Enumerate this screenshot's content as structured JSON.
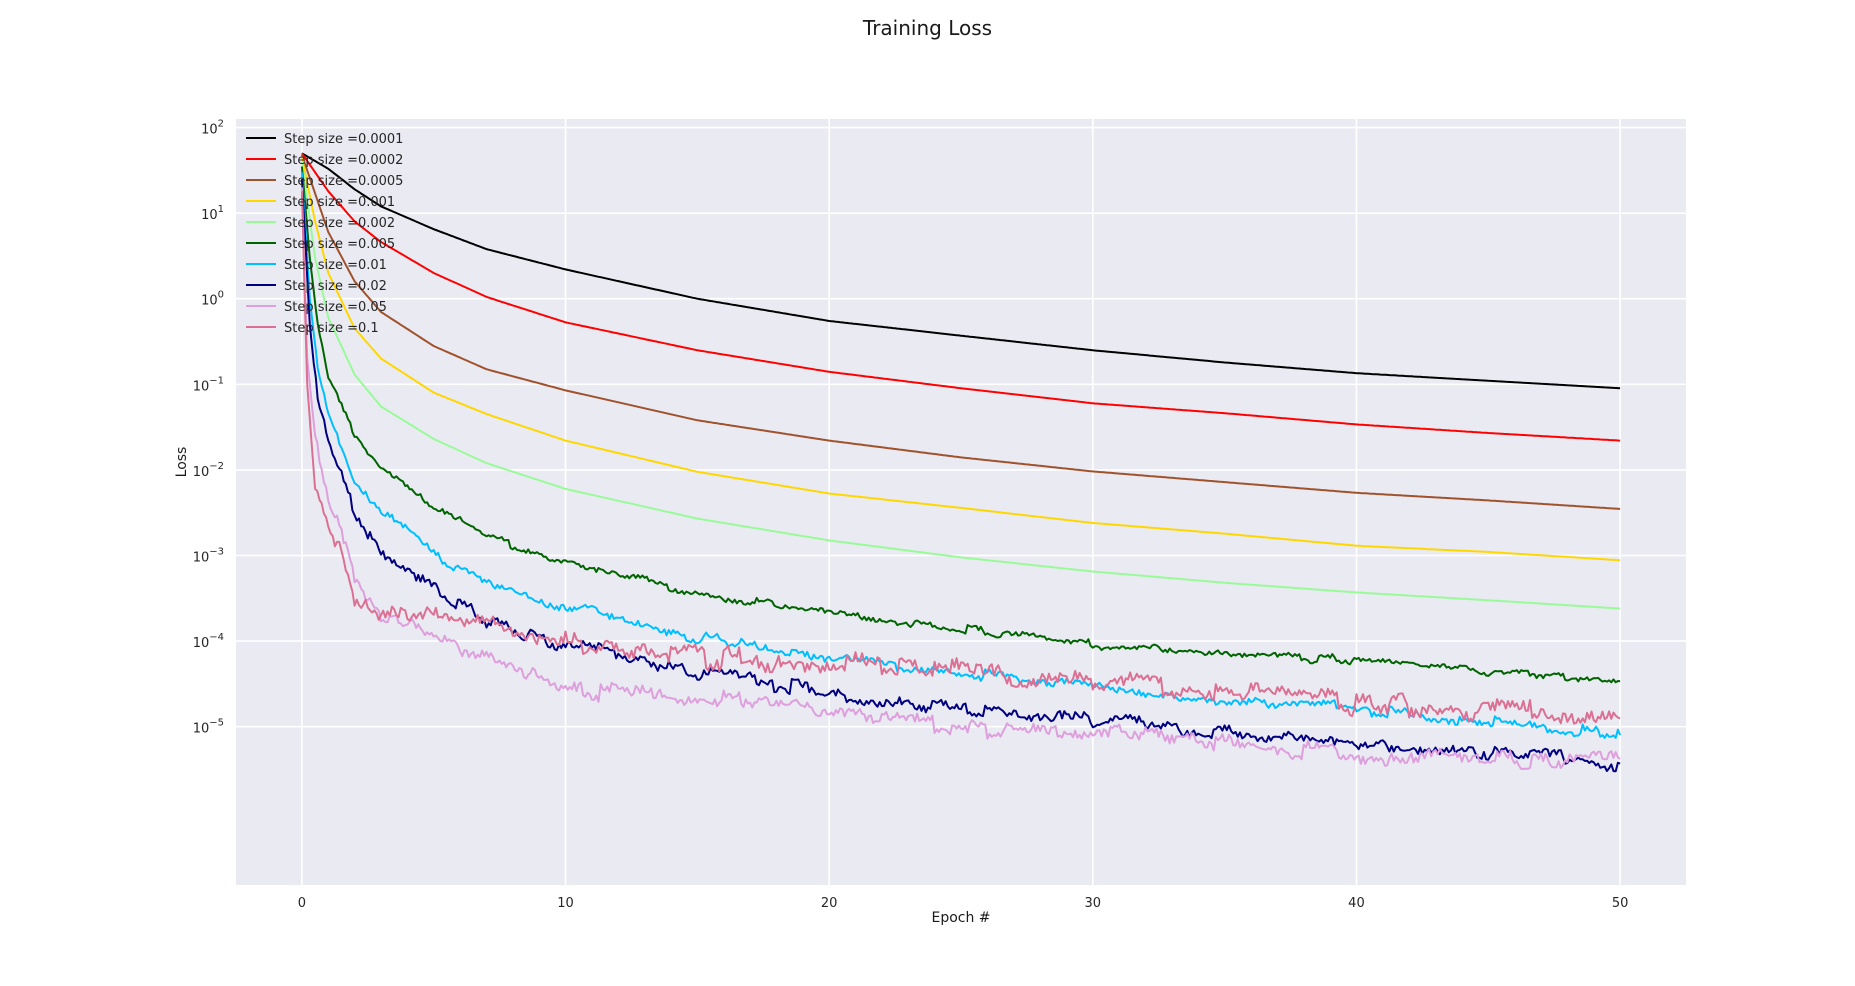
{
  "chart_data": {
    "type": "line",
    "title": "Training Loss",
    "xlabel": "Epoch #",
    "ylabel": "Loss",
    "xlim": [
      -2.5,
      52.5
    ],
    "yscale": "log",
    "ylim_exponent": [
      -6.85,
      2.1
    ],
    "x_ticks": [
      0,
      10,
      20,
      30,
      40,
      50
    ],
    "y_tick_exponents": [
      2,
      1,
      0,
      -1,
      -2,
      -3,
      -4,
      -5
    ],
    "grid": true,
    "legend_position": "upper-left",
    "series": [
      {
        "name": "Step size =0.0001",
        "color": "#000000",
        "points": [
          [
            0,
            50
          ],
          [
            1,
            33
          ],
          [
            2,
            19
          ],
          [
            3,
            12
          ],
          [
            5,
            6.5
          ],
          [
            7,
            3.8
          ],
          [
            10,
            2.2
          ],
          [
            15,
            1.0
          ],
          [
            20,
            0.55
          ],
          [
            25,
            0.37
          ],
          [
            30,
            0.25
          ],
          [
            35,
            0.18
          ],
          [
            40,
            0.135
          ],
          [
            45,
            0.11
          ],
          [
            50,
            0.09
          ]
        ]
      },
      {
        "name": "Step size =0.0002",
        "color": "#ff0000",
        "points": [
          [
            0,
            50
          ],
          [
            1,
            18
          ],
          [
            2,
            8
          ],
          [
            3,
            4.6
          ],
          [
            5,
            2.0
          ],
          [
            7,
            1.05
          ],
          [
            10,
            0.53
          ],
          [
            15,
            0.25
          ],
          [
            20,
            0.14
          ],
          [
            25,
            0.09
          ],
          [
            30,
            0.06
          ],
          [
            35,
            0.046
          ],
          [
            40,
            0.034
          ],
          [
            45,
            0.027
          ],
          [
            50,
            0.022
          ]
        ]
      },
      {
        "name": "Step size =0.0005",
        "color": "#a0522d",
        "points": [
          [
            0,
            48
          ],
          [
            1,
            6
          ],
          [
            2,
            1.6
          ],
          [
            3,
            0.7
          ],
          [
            5,
            0.28
          ],
          [
            7,
            0.15
          ],
          [
            10,
            0.085
          ],
          [
            15,
            0.038
          ],
          [
            20,
            0.022
          ],
          [
            25,
            0.014
          ],
          [
            30,
            0.0096
          ],
          [
            35,
            0.0072
          ],
          [
            40,
            0.0054
          ],
          [
            45,
            0.0044
          ],
          [
            50,
            0.0035
          ]
        ]
      },
      {
        "name": "Step size =0.001",
        "color": "#ffd700",
        "points": [
          [
            0,
            45
          ],
          [
            0.5,
            8
          ],
          [
            1,
            2
          ],
          [
            2,
            0.45
          ],
          [
            3,
            0.2
          ],
          [
            5,
            0.08
          ],
          [
            7,
            0.045
          ],
          [
            10,
            0.022
          ],
          [
            15,
            0.0095
          ],
          [
            20,
            0.0053
          ],
          [
            25,
            0.0036
          ],
          [
            30,
            0.0024
          ],
          [
            35,
            0.0018
          ],
          [
            40,
            0.0013
          ],
          [
            45,
            0.0011
          ],
          [
            50,
            0.00088
          ]
        ]
      },
      {
        "name": "Step size =0.002",
        "color": "#98fb98",
        "points": [
          [
            0,
            40
          ],
          [
            0.5,
            3
          ],
          [
            1,
            0.6
          ],
          [
            2,
            0.13
          ],
          [
            3,
            0.055
          ],
          [
            5,
            0.023
          ],
          [
            7,
            0.012
          ],
          [
            10,
            0.006
          ],
          [
            15,
            0.0027
          ],
          [
            20,
            0.0015
          ],
          [
            25,
            0.00095
          ],
          [
            30,
            0.00065
          ],
          [
            35,
            0.00048
          ],
          [
            40,
            0.00037
          ],
          [
            45,
            0.0003
          ],
          [
            50,
            0.00024
          ]
        ]
      },
      {
        "name": "Step size =0.005",
        "color": "#006400",
        "points": [
          [
            0,
            35
          ],
          [
            0.3,
            3
          ],
          [
            0.6,
            0.5
          ],
          [
            1,
            0.12
          ],
          [
            2,
            0.025
          ],
          [
            3,
            0.01
          ],
          [
            5,
            0.0038
          ],
          [
            7,
            0.0017
          ],
          [
            10,
            0.00085
          ],
          [
            15,
            0.00036
          ],
          [
            20,
            0.00021
          ],
          [
            25,
            0.00014
          ],
          [
            30,
            9e-05
          ],
          [
            35,
            7e-05
          ],
          [
            40,
            6e-05
          ],
          [
            45,
            4.4e-05
          ],
          [
            50,
            3.4e-05
          ]
        ]
      },
      {
        "name": "Step size =0.01",
        "color": "#00bfff",
        "points": [
          [
            0,
            30
          ],
          [
            0.3,
            1.0
          ],
          [
            0.6,
            0.15
          ],
          [
            1,
            0.05
          ],
          [
            2,
            0.008
          ],
          [
            3,
            0.0035
          ],
          [
            5,
            0.0011
          ],
          [
            7,
            0.00045
          ],
          [
            10,
            0.00026
          ],
          [
            15,
            0.00011
          ],
          [
            20,
            6.2e-05
          ],
          [
            25,
            4.2e-05
          ],
          [
            30,
            2.8e-05
          ],
          [
            35,
            2.1e-05
          ],
          [
            40,
            1.6e-05
          ],
          [
            45,
            1.1e-05
          ],
          [
            50,
            8e-06
          ]
        ]
      },
      {
        "name": "Step size =0.02",
        "color": "#000080",
        "points": [
          [
            0,
            25
          ],
          [
            0.3,
            0.5
          ],
          [
            0.6,
            0.06
          ],
          [
            1,
            0.02
          ],
          [
            2,
            0.0035
          ],
          [
            3,
            0.0011
          ],
          [
            5,
            0.0004
          ],
          [
            7,
            0.00017
          ],
          [
            10,
            9e-05
          ],
          [
            15,
            4.4e-05
          ],
          [
            20,
            2.5e-05
          ],
          [
            25,
            1.6e-05
          ],
          [
            30,
            1.2e-05
          ],
          [
            35,
            8.5e-06
          ],
          [
            40,
            6e-06
          ],
          [
            45,
            4.8e-06
          ],
          [
            50,
            3.7e-06
          ]
        ]
      },
      {
        "name": "Step size =0.05",
        "color": "#dda0dd",
        "points": [
          [
            0,
            20
          ],
          [
            0.2,
            0.2
          ],
          [
            0.5,
            0.025
          ],
          [
            1,
            0.005
          ],
          [
            2,
            0.0006
          ],
          [
            3,
            0.0002
          ],
          [
            5,
            0.00011
          ],
          [
            7,
            6e-05
          ],
          [
            10,
            2.5e-05
          ],
          [
            15,
            2.2e-05
          ],
          [
            20,
            1.7e-05
          ],
          [
            25,
            9.5e-06
          ],
          [
            30,
            8.5e-06
          ],
          [
            35,
            6.5e-06
          ],
          [
            40,
            4.5e-06
          ],
          [
            45,
            4.2e-06
          ],
          [
            50,
            4.2e-06
          ]
        ]
      },
      {
        "name": "Step size =0.1",
        "color": "#db7093",
        "points": [
          [
            0,
            18
          ],
          [
            0.2,
            0.1
          ],
          [
            0.5,
            0.006
          ],
          [
            1,
            0.0025
          ],
          [
            2,
            0.0003
          ],
          [
            3,
            0.00022
          ],
          [
            5,
            0.0002
          ],
          [
            7,
            0.00016
          ],
          [
            10,
            0.0001
          ],
          [
            15,
            6.5e-05
          ],
          [
            20,
            5.5e-05
          ],
          [
            25,
            4.5e-05
          ],
          [
            30,
            3.4e-05
          ],
          [
            35,
            2.6e-05
          ],
          [
            40,
            1.9e-05
          ],
          [
            45,
            1.5e-05
          ],
          [
            50,
            1.25e-05
          ]
        ]
      }
    ]
  }
}
